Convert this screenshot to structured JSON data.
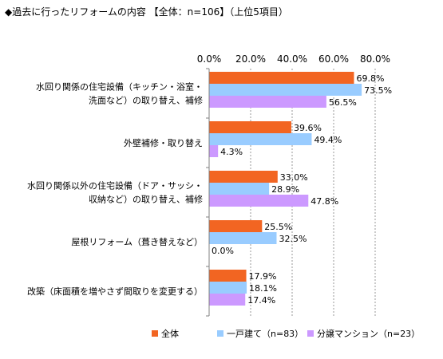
{
  "chart_data": {
    "type": "bar",
    "orientation": "horizontal",
    "title": "◆過去に行ったリフォームの内容 【全体：n=106】（上位5項目）",
    "xlim": [
      0,
      80
    ],
    "x_ticks": [
      "0.0%",
      "20.0%",
      "40.0%",
      "60.0%",
      "80.0%"
    ],
    "x_tick_values": [
      0,
      20,
      40,
      60,
      80
    ],
    "grid": "vertical dashed",
    "legend_position": "bottom",
    "categories": [
      [
        "水回り関係の住宅設備（キッチン・浴室・",
        "洗面など）の取り替え、補修"
      ],
      [
        "外壁補修・取り替え"
      ],
      [
        "水回り関係以外の住宅設備（ドア・サッシ・",
        "収納など）の取り替え、補修"
      ],
      [
        "屋根リフォーム（葺き替えなど）"
      ],
      [
        "改築（床面積を増やさず間取りを変更する）"
      ]
    ],
    "series": [
      {
        "name": "全体",
        "color": "#f26522",
        "values": [
          69.8,
          39.6,
          33.0,
          25.5,
          17.9
        ],
        "labels": [
          "69.8%",
          "39.6%",
          "33.0%",
          "25.5%",
          "17.9%"
        ]
      },
      {
        "name": "一戸建て（n=83）",
        "color": "#99ccff",
        "values": [
          73.5,
          49.4,
          28.9,
          32.5,
          18.1
        ],
        "labels": [
          "73.5%",
          "49.4%",
          "28.9%",
          "32.5%",
          "18.1%"
        ]
      },
      {
        "name": "分譲マンション（n=23）",
        "color": "#cc99ff",
        "values": [
          56.5,
          4.3,
          47.8,
          0.0,
          17.4
        ],
        "labels": [
          "56.5%",
          "4.3%",
          "47.8%",
          "0.0%",
          "17.4%"
        ]
      }
    ]
  }
}
